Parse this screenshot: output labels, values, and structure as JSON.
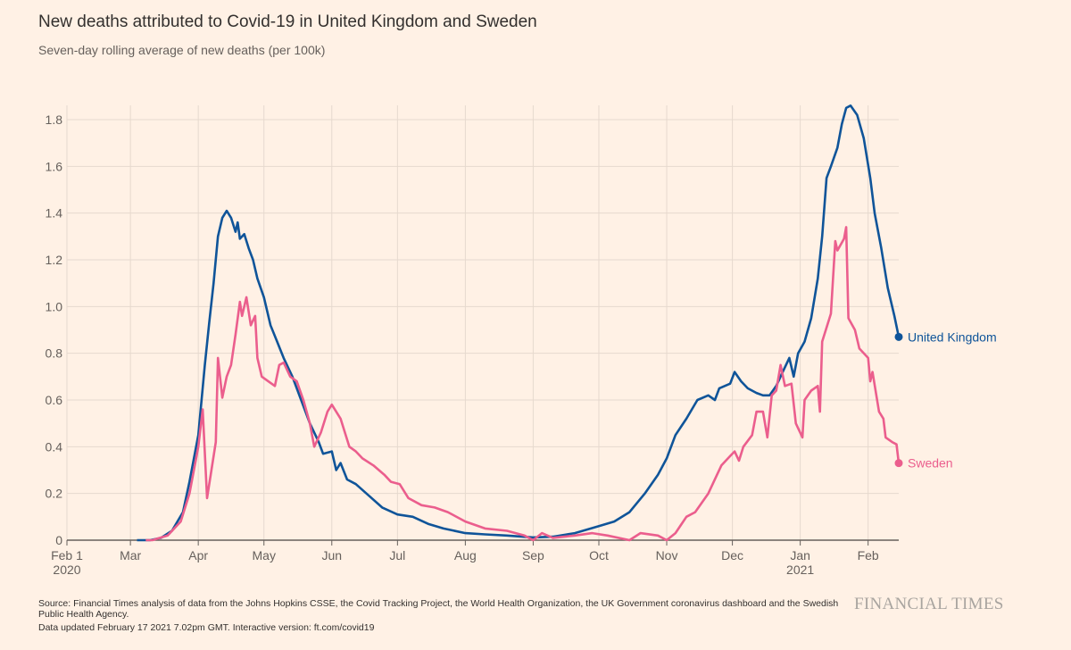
{
  "chart_data": {
    "type": "line",
    "title": "New deaths attributed to Covid-19 in United Kingdom and Sweden",
    "subtitle": "Seven-day rolling average of new deaths (per 100k)",
    "xlim": [
      "2020-02-01",
      "2021-02-15"
    ],
    "ylim": [
      0,
      1.8
    ],
    "yticks": [
      0,
      0.2,
      0.4,
      0.6,
      0.8,
      1.0,
      1.2,
      1.4,
      1.6,
      1.8
    ],
    "ytick_labels": [
      "0",
      "0.2",
      "0.4",
      "0.6",
      "0.8",
      "1.0",
      "1.2",
      "1.4",
      "1.6",
      "1.8"
    ],
    "xticks": [
      {
        "date": "2020-02-01",
        "label": "Feb 1",
        "sublabel": "2020"
      },
      {
        "date": "2020-03-01",
        "label": "Mar"
      },
      {
        "date": "2020-04-01",
        "label": "Apr"
      },
      {
        "date": "2020-05-01",
        "label": "May"
      },
      {
        "date": "2020-06-01",
        "label": "Jun"
      },
      {
        "date": "2020-07-01",
        "label": "Jul"
      },
      {
        "date": "2020-08-01",
        "label": "Aug"
      },
      {
        "date": "2020-09-01",
        "label": "Sep"
      },
      {
        "date": "2020-10-01",
        "label": "Oct"
      },
      {
        "date": "2020-11-01",
        "label": "Nov"
      },
      {
        "date": "2020-12-01",
        "label": "Dec"
      },
      {
        "date": "2021-01-01",
        "label": "Jan",
        "sublabel": "2021"
      },
      {
        "date": "2021-02-01",
        "label": "Feb"
      }
    ],
    "grid": true,
    "legend": "end-of-line labels",
    "series": [
      {
        "name": "United Kingdom",
        "color": "#0f5499",
        "points": [
          [
            "2020-03-04",
            0
          ],
          [
            "2020-03-10",
            0
          ],
          [
            "2020-03-15",
            0.01
          ],
          [
            "2020-03-20",
            0.04
          ],
          [
            "2020-03-25",
            0.12
          ],
          [
            "2020-03-28",
            0.25
          ],
          [
            "2020-04-01",
            0.45
          ],
          [
            "2020-04-04",
            0.75
          ],
          [
            "2020-04-06",
            0.93
          ],
          [
            "2020-04-08",
            1.1
          ],
          [
            "2020-04-10",
            1.3
          ],
          [
            "2020-04-12",
            1.38
          ],
          [
            "2020-04-14",
            1.41
          ],
          [
            "2020-04-16",
            1.38
          ],
          [
            "2020-04-18",
            1.32
          ],
          [
            "2020-04-19",
            1.36
          ],
          [
            "2020-04-20",
            1.29
          ],
          [
            "2020-04-22",
            1.31
          ],
          [
            "2020-04-24",
            1.25
          ],
          [
            "2020-04-26",
            1.2
          ],
          [
            "2020-04-28",
            1.12
          ],
          [
            "2020-05-01",
            1.04
          ],
          [
            "2020-05-04",
            0.92
          ],
          [
            "2020-05-07",
            0.85
          ],
          [
            "2020-05-10",
            0.78
          ],
          [
            "2020-05-14",
            0.7
          ],
          [
            "2020-05-18",
            0.6
          ],
          [
            "2020-05-22",
            0.5
          ],
          [
            "2020-05-26",
            0.42
          ],
          [
            "2020-05-28",
            0.37
          ],
          [
            "2020-06-01",
            0.38
          ],
          [
            "2020-06-03",
            0.3
          ],
          [
            "2020-06-05",
            0.33
          ],
          [
            "2020-06-08",
            0.26
          ],
          [
            "2020-06-12",
            0.24
          ],
          [
            "2020-06-18",
            0.19
          ],
          [
            "2020-06-24",
            0.14
          ],
          [
            "2020-07-01",
            0.11
          ],
          [
            "2020-07-08",
            0.1
          ],
          [
            "2020-07-15",
            0.07
          ],
          [
            "2020-07-22",
            0.05
          ],
          [
            "2020-08-01",
            0.03
          ],
          [
            "2020-08-10",
            0.025
          ],
          [
            "2020-08-20",
            0.02
          ],
          [
            "2020-09-01",
            0.012
          ],
          [
            "2020-09-10",
            0.015
          ],
          [
            "2020-09-20",
            0.03
          ],
          [
            "2020-10-01",
            0.06
          ],
          [
            "2020-10-08",
            0.08
          ],
          [
            "2020-10-15",
            0.12
          ],
          [
            "2020-10-22",
            0.2
          ],
          [
            "2020-10-28",
            0.28
          ],
          [
            "2020-11-01",
            0.35
          ],
          [
            "2020-11-05",
            0.45
          ],
          [
            "2020-11-10",
            0.52
          ],
          [
            "2020-11-15",
            0.6
          ],
          [
            "2020-11-20",
            0.62
          ],
          [
            "2020-11-23",
            0.6
          ],
          [
            "2020-11-25",
            0.65
          ],
          [
            "2020-11-30",
            0.67
          ],
          [
            "2020-12-02",
            0.72
          ],
          [
            "2020-12-05",
            0.68
          ],
          [
            "2020-12-08",
            0.65
          ],
          [
            "2020-12-12",
            0.63
          ],
          [
            "2020-12-15",
            0.62
          ],
          [
            "2020-12-18",
            0.62
          ],
          [
            "2020-12-21",
            0.66
          ],
          [
            "2020-12-24",
            0.72
          ],
          [
            "2020-12-27",
            0.78
          ],
          [
            "2020-12-29",
            0.7
          ],
          [
            "2020-12-31",
            0.8
          ],
          [
            "2021-01-03",
            0.85
          ],
          [
            "2021-01-06",
            0.95
          ],
          [
            "2021-01-09",
            1.12
          ],
          [
            "2021-01-11",
            1.3
          ],
          [
            "2021-01-13",
            1.55
          ],
          [
            "2021-01-15",
            1.6
          ],
          [
            "2021-01-18",
            1.68
          ],
          [
            "2021-01-20",
            1.78
          ],
          [
            "2021-01-22",
            1.85
          ],
          [
            "2021-01-24",
            1.86
          ],
          [
            "2021-01-27",
            1.82
          ],
          [
            "2021-01-30",
            1.72
          ],
          [
            "2021-02-02",
            1.55
          ],
          [
            "2021-02-04",
            1.4
          ],
          [
            "2021-02-07",
            1.25
          ],
          [
            "2021-02-10",
            1.08
          ],
          [
            "2021-02-13",
            0.96
          ],
          [
            "2021-02-15",
            0.87
          ]
        ]
      },
      {
        "name": "Sweden",
        "color": "#eb5e8d",
        "points": [
          [
            "2020-03-08",
            0
          ],
          [
            "2020-03-11",
            0
          ],
          [
            "2020-03-18",
            0.02
          ],
          [
            "2020-03-24",
            0.08
          ],
          [
            "2020-03-28",
            0.2
          ],
          [
            "2020-04-01",
            0.4
          ],
          [
            "2020-04-03",
            0.56
          ],
          [
            "2020-04-05",
            0.18
          ],
          [
            "2020-04-07",
            0.3
          ],
          [
            "2020-04-09",
            0.42
          ],
          [
            "2020-04-10",
            0.78
          ],
          [
            "2020-04-12",
            0.61
          ],
          [
            "2020-04-14",
            0.7
          ],
          [
            "2020-04-16",
            0.75
          ],
          [
            "2020-04-18",
            0.88
          ],
          [
            "2020-04-20",
            1.02
          ],
          [
            "2020-04-21",
            0.96
          ],
          [
            "2020-04-23",
            1.04
          ],
          [
            "2020-04-25",
            0.92
          ],
          [
            "2020-04-27",
            0.96
          ],
          [
            "2020-04-28",
            0.78
          ],
          [
            "2020-04-30",
            0.7
          ],
          [
            "2020-05-03",
            0.68
          ],
          [
            "2020-05-06",
            0.66
          ],
          [
            "2020-05-08",
            0.75
          ],
          [
            "2020-05-10",
            0.76
          ],
          [
            "2020-05-13",
            0.7
          ],
          [
            "2020-05-16",
            0.68
          ],
          [
            "2020-05-19",
            0.6
          ],
          [
            "2020-05-22",
            0.5
          ],
          [
            "2020-05-24",
            0.4
          ],
          [
            "2020-05-27",
            0.46
          ],
          [
            "2020-05-30",
            0.55
          ],
          [
            "2020-06-01",
            0.58
          ],
          [
            "2020-06-05",
            0.52
          ],
          [
            "2020-06-09",
            0.4
          ],
          [
            "2020-06-12",
            0.38
          ],
          [
            "2020-06-15",
            0.35
          ],
          [
            "2020-06-20",
            0.32
          ],
          [
            "2020-06-25",
            0.28
          ],
          [
            "2020-06-28",
            0.25
          ],
          [
            "2020-07-02",
            0.24
          ],
          [
            "2020-07-06",
            0.18
          ],
          [
            "2020-07-12",
            0.15
          ],
          [
            "2020-07-18",
            0.14
          ],
          [
            "2020-07-24",
            0.12
          ],
          [
            "2020-08-01",
            0.08
          ],
          [
            "2020-08-10",
            0.05
          ],
          [
            "2020-08-20",
            0.04
          ],
          [
            "2020-08-28",
            0.02
          ],
          [
            "2020-09-01",
            0.0
          ],
          [
            "2020-09-05",
            0.03
          ],
          [
            "2020-09-10",
            0.01
          ],
          [
            "2020-09-20",
            0.02
          ],
          [
            "2020-09-28",
            0.03
          ],
          [
            "2020-10-05",
            0.02
          ],
          [
            "2020-10-15",
            0.0
          ],
          [
            "2020-10-20",
            0.03
          ],
          [
            "2020-10-28",
            0.02
          ],
          [
            "2020-11-01",
            0.0
          ],
          [
            "2020-11-05",
            0.03
          ],
          [
            "2020-11-10",
            0.1
          ],
          [
            "2020-11-14",
            0.12
          ],
          [
            "2020-11-20",
            0.2
          ],
          [
            "2020-11-24",
            0.28
          ],
          [
            "2020-11-26",
            0.32
          ],
          [
            "2020-11-30",
            0.36
          ],
          [
            "2020-12-02",
            0.38
          ],
          [
            "2020-12-04",
            0.34
          ],
          [
            "2020-12-06",
            0.4
          ],
          [
            "2020-12-10",
            0.45
          ],
          [
            "2020-12-12",
            0.55
          ],
          [
            "2020-12-15",
            0.55
          ],
          [
            "2020-12-17",
            0.44
          ],
          [
            "2020-12-19",
            0.62
          ],
          [
            "2020-12-21",
            0.64
          ],
          [
            "2020-12-23",
            0.75
          ],
          [
            "2020-12-25",
            0.66
          ],
          [
            "2020-12-28",
            0.67
          ],
          [
            "2020-12-30",
            0.5
          ],
          [
            "2021-01-02",
            0.44
          ],
          [
            "2021-01-03",
            0.6
          ],
          [
            "2021-01-06",
            0.64
          ],
          [
            "2021-01-09",
            0.66
          ],
          [
            "2021-01-10",
            0.55
          ],
          [
            "2021-01-11",
            0.85
          ],
          [
            "2021-01-15",
            0.97
          ],
          [
            "2021-01-17",
            1.28
          ],
          [
            "2021-01-18",
            1.24
          ],
          [
            "2021-01-21",
            1.29
          ],
          [
            "2021-01-22",
            1.34
          ],
          [
            "2021-01-23",
            0.95
          ],
          [
            "2021-01-26",
            0.9
          ],
          [
            "2021-01-28",
            0.82
          ],
          [
            "2021-02-01",
            0.78
          ],
          [
            "2021-02-02",
            0.68
          ],
          [
            "2021-02-03",
            0.72
          ],
          [
            "2021-02-06",
            0.55
          ],
          [
            "2021-02-08",
            0.52
          ],
          [
            "2021-02-09",
            0.44
          ],
          [
            "2021-02-12",
            0.42
          ],
          [
            "2021-02-14",
            0.41
          ],
          [
            "2021-02-15",
            0.33
          ]
        ]
      }
    ]
  },
  "footer": {
    "source": "Source: Financial Times analysis of data from the Johns Hopkins CSSE, the Covid Tracking Project, the World Health Organization, the UK Government coronavirus dashboard and the Swedish Public Health Agency.",
    "updated": "Data updated February 17 2021 7.02pm GMT. Interactive version: ft.com/covid19",
    "logo": "FINANCIAL TIMES"
  },
  "colors": {
    "background": "#fff1e5",
    "grid": "#e6d9ce",
    "axis": "#66605c"
  }
}
